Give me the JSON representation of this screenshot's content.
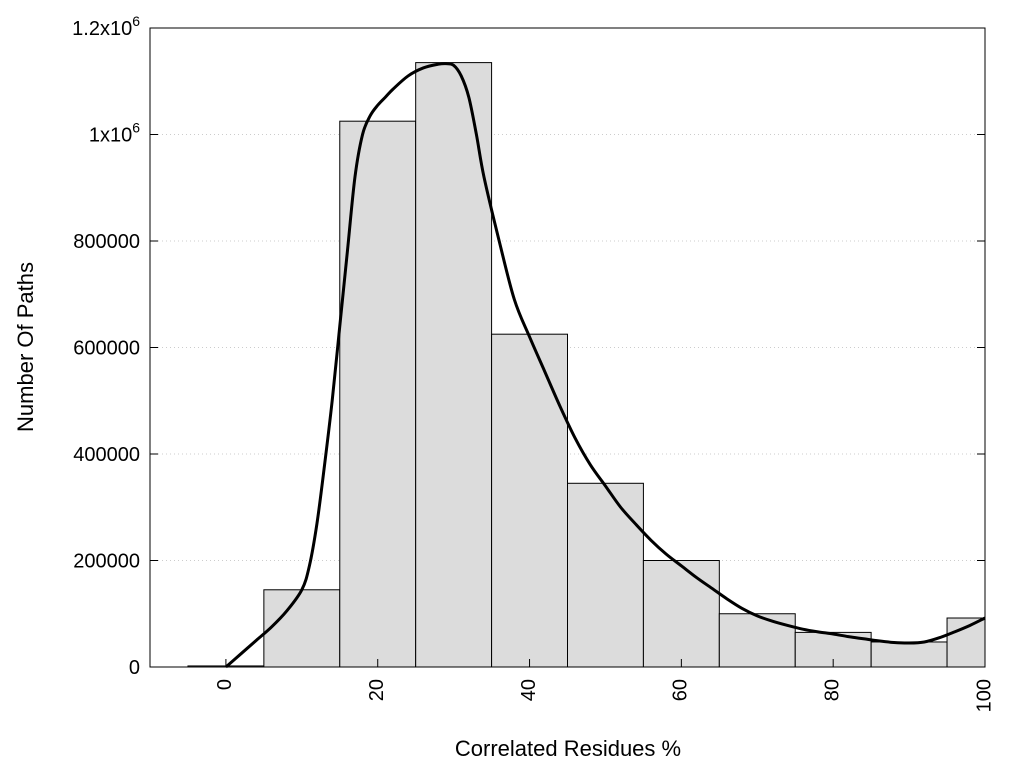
{
  "chart_data": {
    "type": "bar",
    "title": "",
    "xlabel": "Correlated Residues %",
    "ylabel": "Number Of Paths",
    "xlim": [
      -10,
      100
    ],
    "ylim": [
      0,
      1200000
    ],
    "grid": true,
    "bin_width": 10,
    "x_ticks": [
      {
        "value": 0,
        "label": "0"
      },
      {
        "value": 20,
        "label": "20"
      },
      {
        "value": 40,
        "label": "40"
      },
      {
        "value": 60,
        "label": "60"
      },
      {
        "value": 80,
        "label": "80"
      },
      {
        "value": 100,
        "label": "100"
      }
    ],
    "y_ticks": [
      {
        "value": 0,
        "label": "0"
      },
      {
        "value": 200000,
        "label": "200000"
      },
      {
        "value": 400000,
        "label": "400000"
      },
      {
        "value": 600000,
        "label": "600000"
      },
      {
        "value": 800000,
        "label": "800000"
      },
      {
        "value": 1000000,
        "label": "1x10",
        "sup": "6"
      },
      {
        "value": 1200000,
        "label": "1.2x10",
        "sup": "6"
      }
    ],
    "bars": {
      "centers": [
        0,
        10,
        20,
        30,
        40,
        50,
        60,
        70,
        80,
        90,
        100
      ],
      "values": [
        2000,
        145000,
        1025000,
        1135000,
        625000,
        345000,
        200000,
        100000,
        65000,
        47000,
        92000
      ]
    },
    "curve": {
      "x": [
        0,
        2,
        4,
        6,
        8,
        10,
        11,
        12,
        13,
        14,
        15,
        16,
        17,
        18,
        19,
        20,
        21,
        22,
        24,
        26,
        28,
        29,
        30,
        31,
        32,
        33,
        34,
        36,
        38,
        40,
        42,
        44,
        46,
        48,
        50,
        52,
        54,
        56,
        58,
        60,
        62,
        64,
        66,
        68,
        70,
        72,
        74,
        76,
        78,
        80,
        82,
        84,
        86,
        88,
        90,
        92,
        94,
        96,
        98,
        100
      ],
      "y": [
        0,
        25000,
        50000,
        75000,
        105000,
        145000,
        190000,
        270000,
        380000,
        500000,
        640000,
        780000,
        920000,
        1000000,
        1035000,
        1055000,
        1070000,
        1085000,
        1110000,
        1125000,
        1132000,
        1133000,
        1130000,
        1110000,
        1070000,
        1000000,
        920000,
        800000,
        690000,
        620000,
        555000,
        490000,
        430000,
        380000,
        340000,
        300000,
        268000,
        238000,
        212000,
        190000,
        168000,
        148000,
        128000,
        110000,
        96000,
        86000,
        78000,
        71000,
        66000,
        62000,
        57000,
        53000,
        49000,
        46000,
        45000,
        47000,
        55000,
        66000,
        78000,
        92000
      ]
    },
    "colors": {
      "bar_fill": "#dcdcdc",
      "bar_stroke": "#000000",
      "curve": "#000000",
      "grid": "#cccccc"
    }
  }
}
